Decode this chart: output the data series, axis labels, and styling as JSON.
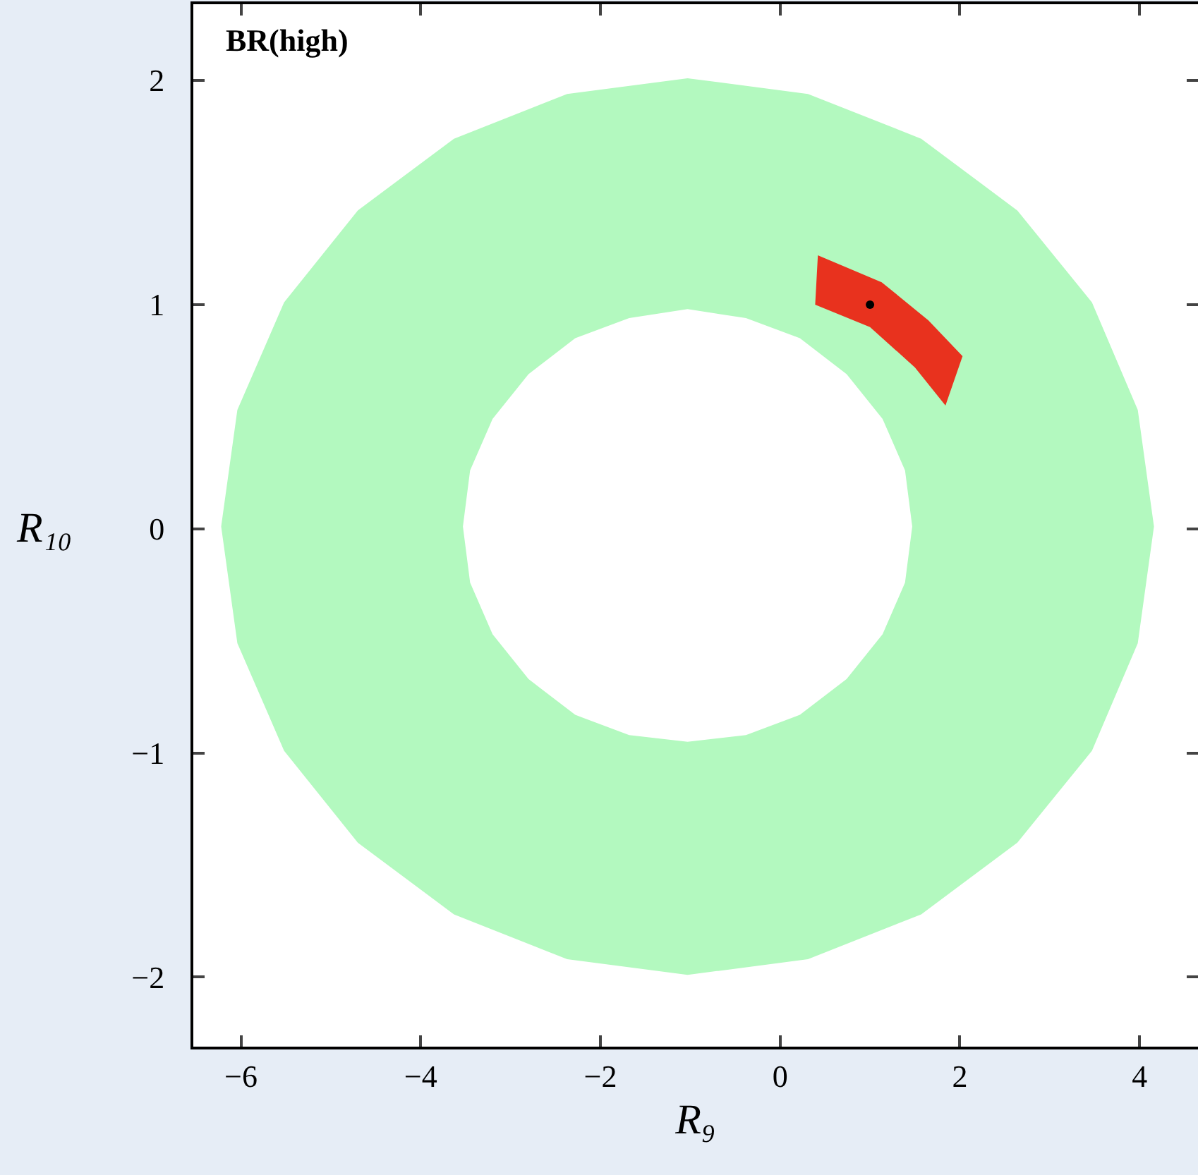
{
  "chart_data": {
    "type": "area",
    "xlabel": "R₉",
    "ylabel": "R₁₀",
    "annotations": [
      "BR(high)"
    ],
    "xlim": [
      -6.53,
      4.65
    ],
    "ylim": [
      -2.31,
      2.34
    ],
    "xticks": [
      -6,
      -4,
      -2,
      0,
      2,
      4
    ],
    "yticks": [
      -2,
      -1,
      0,
      1,
      2
    ],
    "grid": false,
    "series": [
      {
        "color": "#b3f9bf",
        "x": [
          4.16,
          3.98,
          3.47,
          2.64,
          1.57,
          0.31,
          -1.03,
          -2.37,
          -3.63,
          -4.7,
          -5.52,
          -6.04,
          -6.22,
          -6.04,
          -5.52,
          -4.7,
          -3.63,
          -2.37,
          -1.03,
          0.31,
          1.57,
          2.64,
          3.47,
          3.98,
          4.16,
          1.47,
          1.39,
          1.14,
          0.74,
          0.22,
          -0.38,
          -1.03,
          -1.68,
          -2.28,
          -2.8,
          -3.2,
          -3.45,
          -3.53,
          -3.45,
          -3.2,
          -2.8,
          -2.28,
          -1.68,
          -1.03,
          -0.38,
          0.22,
          0.74,
          1.14,
          1.39,
          1.47
        ],
        "values": [
          0.01,
          0.53,
          1.01,
          1.42,
          1.74,
          1.94,
          2.01,
          1.94,
          1.74,
          1.42,
          1.01,
          0.53,
          0.01,
          -0.51,
          -0.99,
          -1.4,
          -1.72,
          -1.92,
          -1.99,
          -1.92,
          -1.72,
          -1.4,
          -0.99,
          -0.51,
          0.01,
          0.01,
          -0.24,
          -0.47,
          -0.67,
          -0.83,
          -0.92,
          -0.95,
          -0.92,
          -0.83,
          -0.67,
          -0.47,
          -0.24,
          0.01,
          0.26,
          0.49,
          0.69,
          0.85,
          0.94,
          0.98,
          0.94,
          0.85,
          0.69,
          0.49,
          0.26,
          0.01
        ]
      },
      {
        "color": "#e8321e",
        "x": [
          0.42,
          1.13,
          1.65,
          2.03,
          1.84,
          1.5,
          1.0,
          0.39,
          0.42
        ],
        "values": [
          1.22,
          1.1,
          0.93,
          0.77,
          0.55,
          0.72,
          0.9,
          1.0,
          1.22
        ]
      },
      {
        "type": "scatter",
        "color": "#000000",
        "marker": "circle",
        "x": [
          1.0
        ],
        "values": [
          1.0
        ]
      }
    ]
  }
}
